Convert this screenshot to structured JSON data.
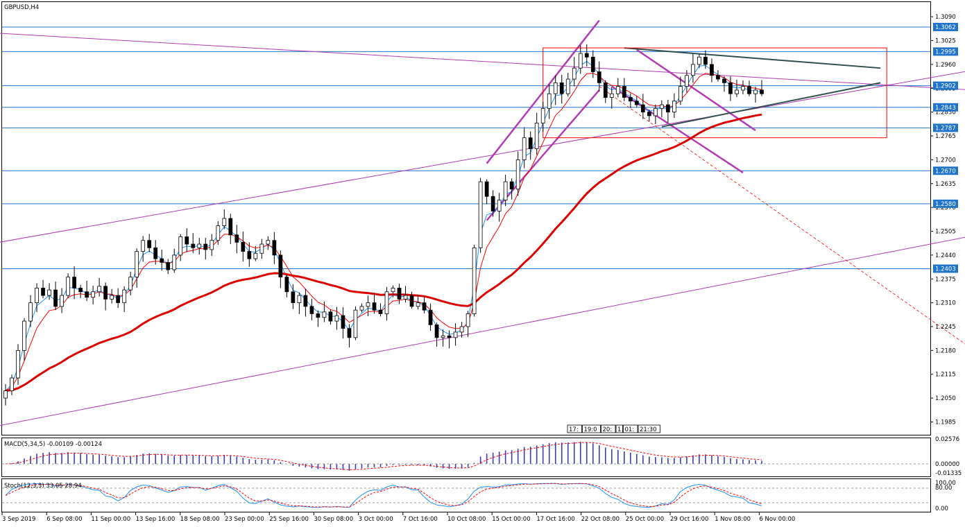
{
  "chart_title": "GBPUSD,H4",
  "colors": {
    "bull": "#000000",
    "bear": "#000000",
    "ema_fast": "#1e90ff",
    "ema_mid": "#ff0000",
    "ema_slow": "#dd0000",
    "hline": "#1f74c9",
    "channel": "#b03bb3",
    "accent_tag": "#1f74c9",
    "macd_hist": "#3b3bb3",
    "macd_signal": "#ff0000",
    "stoch_main": "#1e90ff",
    "stoch_signal": "#ff0000"
  },
  "chart_data": {
    "type": "candlestick",
    "symbol": "GBPUSD",
    "timeframe": "H4",
    "y_ticks": [
      "1.3090",
      "1.3025",
      "1.2960",
      "1.2895",
      "1.2830",
      "1.2765",
      "1.2700",
      "1.2635",
      "1.2570",
      "1.2505",
      "1.2440",
      "1.2375",
      "1.2310",
      "1.2245",
      "1.2180",
      "1.2115",
      "1.2050",
      "1.1985"
    ],
    "ylim": [
      1.195,
      1.313
    ],
    "price_levels": [
      "1.3062",
      "1.2995",
      "1.2902",
      "1.2843",
      "1.2787",
      "1.2670",
      "1.2580",
      "1.2403"
    ],
    "x_ticks": [
      "3 Sep 2019",
      "6 Sep 08:00",
      "11 Sep 00:00",
      "13 Sep 16:00",
      "18 Sep 08:00",
      "23 Sep 00:00",
      "25 Sep 16:00",
      "30 Sep 08:00",
      "3 Oct 00:00",
      "7 Oct 16:00",
      "10 Oct 08:00",
      "15 Oct 00:00",
      "17 Oct 16:00",
      "22 Oct 08:00",
      "25 Oct 00:00",
      "29 Oct 16:00",
      "1 Nov 08:00",
      "6 Nov 00:00"
    ],
    "time_labels": [
      "17:",
      "19:0",
      "20:",
      "1",
      "01:",
      "21:30"
    ],
    "closes": [
      1.207,
      1.2105,
      1.218,
      1.226,
      1.231,
      1.235,
      1.233,
      1.2345,
      1.23,
      1.233,
      1.238,
      1.235,
      1.234,
      1.2325,
      1.234,
      1.2355,
      1.232,
      1.233,
      1.231,
      1.2345,
      1.238,
      1.245,
      1.248,
      1.246,
      1.243,
      1.242,
      1.24,
      1.244,
      1.249,
      1.247,
      1.246,
      1.247,
      1.2455,
      1.248,
      1.252,
      1.254,
      1.2495,
      1.2475,
      1.245,
      1.243,
      1.2445,
      1.247,
      1.248,
      1.244,
      1.238,
      1.234,
      1.231,
      1.233,
      1.23,
      1.228,
      1.227,
      1.2285,
      1.226,
      1.2275,
      1.224,
      1.2215,
      1.229,
      1.23,
      1.231,
      1.229,
      1.228,
      1.234,
      1.235,
      1.232,
      1.233,
      1.23,
      1.231,
      1.229,
      1.225,
      1.2215,
      1.222,
      1.2215,
      1.223,
      1.2245,
      1.228,
      1.246,
      1.264,
      1.26,
      1.256,
      1.259,
      1.264,
      1.262,
      1.27,
      1.276,
      1.273,
      1.28,
      1.284,
      1.288,
      1.291,
      1.288,
      1.292,
      1.295,
      1.299,
      1.298,
      1.294,
      1.291,
      1.287,
      1.288,
      1.29,
      1.287,
      1.286,
      1.285,
      1.283,
      1.282,
      1.284,
      1.285,
      1.283,
      1.286,
      1.29,
      1.293,
      1.296,
      1.298,
      1.296,
      1.293,
      1.292,
      1.291,
      1.288,
      1.289,
      1.29,
      1.288,
      1.289,
      1.288
    ],
    "indicators": {
      "macd": {
        "label": "MACD(5,34,5) -0.00109 -0.00124",
        "ticks": [
          "0.02576",
          "0.00000",
          "-0.01335"
        ]
      },
      "stoch": {
        "label": "Stoch(12,3,3) 33.05 28.94",
        "ticks": [
          "100.00",
          "80.00",
          "0.00"
        ]
      }
    }
  }
}
